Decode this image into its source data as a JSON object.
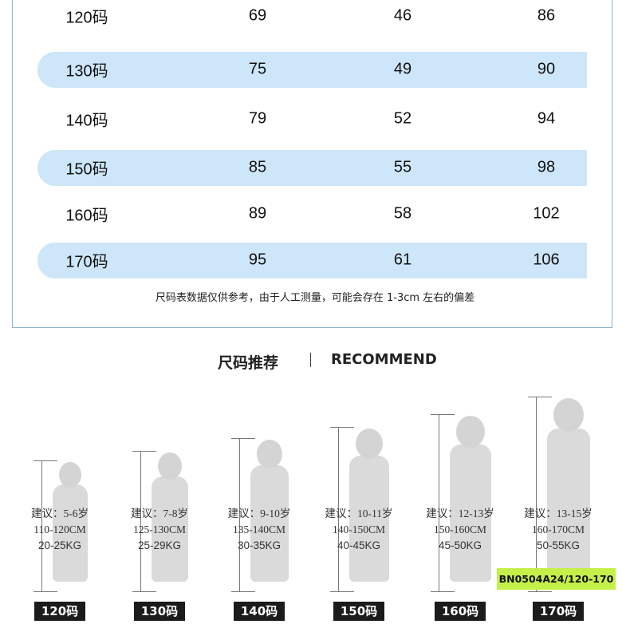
{
  "size_table": {
    "rows": [
      {
        "size": "120码",
        "c1": "69",
        "c2": "46",
        "c3": "86",
        "highlight": false
      },
      {
        "size": "130码",
        "c1": "75",
        "c2": "49",
        "c3": "90",
        "highlight": true
      },
      {
        "size": "140码",
        "c1": "79",
        "c2": "52",
        "c3": "94",
        "highlight": false
      },
      {
        "size": "150码",
        "c1": "85",
        "c2": "55",
        "c3": "98",
        "highlight": true
      },
      {
        "size": "160码",
        "c1": "89",
        "c2": "58",
        "c3": "102",
        "highlight": false
      },
      {
        "size": "170码",
        "c1": "95",
        "c2": "61",
        "c3": "106",
        "highlight": true
      }
    ],
    "note": "尺码表数据仅供参考，由于人工测量，可能会存在 1-3cm 左右的偏差",
    "band_color": "#cde6f9"
  },
  "recommend": {
    "title_cn": "尺码推荐",
    "title_en": "RECOMMEND",
    "figures": [
      {
        "age": "建议：5-6岁",
        "height": "110-120CM",
        "weight": "20-25KG",
        "size": "120码"
      },
      {
        "age": "建议：7-8岁",
        "height": "125-130CM",
        "weight": "25-29KG",
        "size": "130码"
      },
      {
        "age": "建议：9-10岁",
        "height": "135-140CM",
        "weight": "30-35KG",
        "size": "140码"
      },
      {
        "age": "建议：10-11岁",
        "height": "140-150CM",
        "weight": "40-45KG",
        "size": "150码"
      },
      {
        "age": "建议：12-13岁",
        "height": "150-160CM",
        "weight": "45-50KG",
        "size": "160码"
      },
      {
        "age": "建议：13-15岁",
        "height": "160-170CM",
        "weight": "50-55KG",
        "size": "170码"
      }
    ]
  },
  "sku_label": {
    "text": "BN0504A24/120-170",
    "color": "#c5f04a"
  }
}
